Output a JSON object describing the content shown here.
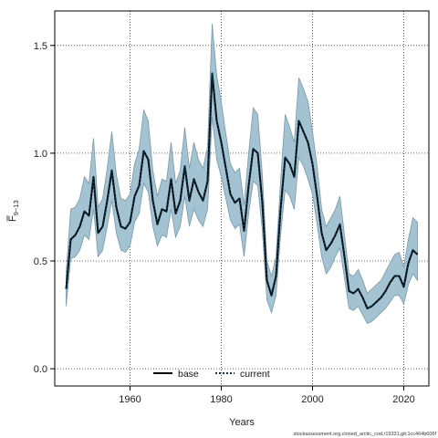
{
  "chart_data": {
    "type": "line",
    "title": "",
    "xlabel": "Years",
    "ylabel_main": "F",
    "ylabel_sub": "9−13",
    "xlim": [
      1943.5,
      2025.5
    ],
    "ylim": [
      -0.08,
      1.66
    ],
    "x_ticks": [
      1960,
      1980,
      2000,
      2020
    ],
    "x_tick_labels": [
      "1960",
      "1980",
      "2000",
      "2020"
    ],
    "y_ticks": [
      0.0,
      0.5,
      1.0,
      1.5
    ],
    "y_tick_labels": [
      "0.0",
      "0.5",
      "1.0",
      "1.5"
    ],
    "grid": true,
    "legend_placement": "bottom-center",
    "colors": {
      "band_fill": "#a3c3d3",
      "band_stroke": "#7a98a8",
      "base_line": "#000000",
      "current_line": "#0a3346"
    },
    "x": [
      1946,
      1947,
      1948,
      1949,
      1950,
      1951,
      1952,
      1953,
      1954,
      1955,
      1956,
      1957,
      1958,
      1959,
      1960,
      1961,
      1962,
      1963,
      1964,
      1965,
      1966,
      1967,
      1968,
      1969,
      1970,
      1971,
      1972,
      1973,
      1974,
      1975,
      1976,
      1977,
      1978,
      1979,
      1980,
      1981,
      1982,
      1983,
      1984,
      1985,
      1986,
      1987,
      1988,
      1989,
      1990,
      1991,
      1992,
      1993,
      1994,
      1995,
      1996,
      1997,
      1998,
      1999,
      2000,
      2001,
      2002,
      2003,
      2004,
      2005,
      2006,
      2007,
      2008,
      2009,
      2010,
      2011,
      2012,
      2013,
      2014,
      2015,
      2016,
      2017,
      2018,
      2019,
      2020,
      2021,
      2022,
      2023
    ],
    "series": [
      {
        "name": "base",
        "style": "solid",
        "values": [
          0.37,
          0.6,
          0.62,
          0.66,
          0.73,
          0.71,
          0.89,
          0.63,
          0.66,
          0.78,
          0.92,
          0.75,
          0.66,
          0.65,
          0.68,
          0.8,
          0.85,
          1.01,
          0.97,
          0.78,
          0.67,
          0.74,
          0.73,
          0.88,
          0.72,
          0.78,
          0.94,
          0.78,
          0.88,
          0.82,
          0.78,
          0.87,
          1.37,
          1.15,
          1.05,
          0.93,
          0.81,
          0.77,
          0.79,
          0.64,
          0.85,
          1.02,
          1.0,
          0.77,
          0.41,
          0.34,
          0.43,
          0.74,
          0.98,
          0.95,
          0.89,
          1.15,
          1.1,
          1.05,
          0.95,
          0.8,
          0.63,
          0.55,
          0.58,
          0.62,
          0.67,
          0.52,
          0.36,
          0.35,
          0.37,
          0.33,
          0.28,
          0.29,
          0.31,
          0.33,
          0.36,
          0.4,
          0.43,
          0.43,
          0.38,
          0.49,
          0.55,
          0.53
        ]
      },
      {
        "name": "current",
        "style": "dotted",
        "values": [
          0.37,
          0.6,
          0.62,
          0.66,
          0.73,
          0.71,
          0.89,
          0.63,
          0.66,
          0.78,
          0.92,
          0.75,
          0.66,
          0.65,
          0.68,
          0.8,
          0.85,
          1.01,
          0.97,
          0.78,
          0.67,
          0.74,
          0.73,
          0.88,
          0.72,
          0.78,
          0.94,
          0.78,
          0.88,
          0.82,
          0.78,
          0.87,
          1.37,
          1.15,
          1.05,
          0.93,
          0.81,
          0.77,
          0.79,
          0.64,
          0.85,
          1.02,
          1.0,
          0.77,
          0.41,
          0.34,
          0.43,
          0.74,
          0.98,
          0.95,
          0.89,
          1.15,
          1.1,
          1.05,
          0.95,
          0.8,
          0.63,
          0.55,
          0.58,
          0.62,
          0.67,
          0.52,
          0.36,
          0.35,
          0.37,
          0.33,
          0.28,
          0.29,
          0.31,
          0.33,
          0.36,
          0.4,
          0.43,
          0.43,
          0.38,
          0.49,
          0.55,
          0.53
        ]
      }
    ],
    "band_lower": [
      0.29,
      0.51,
      0.52,
      0.55,
      0.62,
      0.6,
      0.74,
      0.52,
      0.55,
      0.66,
      0.78,
      0.63,
      0.55,
      0.54,
      0.57,
      0.68,
      0.72,
      0.86,
      0.82,
      0.66,
      0.57,
      0.62,
      0.61,
      0.74,
      0.61,
      0.66,
      0.8,
      0.66,
      0.74,
      0.69,
      0.66,
      0.74,
      1.17,
      0.97,
      0.89,
      0.79,
      0.69,
      0.65,
      0.67,
      0.52,
      0.72,
      0.87,
      0.85,
      0.64,
      0.32,
      0.26,
      0.34,
      0.62,
      0.83,
      0.8,
      0.74,
      0.98,
      0.94,
      0.88,
      0.81,
      0.67,
      0.52,
      0.44,
      0.47,
      0.52,
      0.56,
      0.42,
      0.28,
      0.27,
      0.29,
      0.25,
      0.21,
      0.22,
      0.24,
      0.26,
      0.28,
      0.31,
      0.34,
      0.34,
      0.3,
      0.39,
      0.44,
      0.41
    ],
    "band_upper": [
      0.45,
      0.74,
      0.75,
      0.79,
      0.89,
      0.86,
      1.07,
      0.75,
      0.79,
      0.93,
      1.1,
      0.9,
      0.79,
      0.78,
      0.81,
      0.95,
      1.02,
      1.2,
      1.15,
      0.92,
      0.8,
      0.88,
      0.87,
      1.05,
      0.86,
      0.92,
      1.12,
      0.93,
      1.05,
      0.97,
      0.93,
      1.03,
      1.6,
      1.36,
      1.24,
      1.09,
      0.95,
      0.91,
      0.93,
      0.76,
      1.0,
      1.21,
      1.18,
      0.9,
      0.5,
      0.43,
      0.52,
      0.87,
      1.18,
      1.12,
      1.05,
      1.35,
      1.3,
      1.24,
      1.1,
      0.94,
      0.74,
      0.66,
      0.7,
      0.74,
      0.8,
      0.62,
      0.44,
      0.43,
      0.46,
      0.41,
      0.35,
      0.37,
      0.39,
      0.41,
      0.45,
      0.49,
      0.53,
      0.54,
      0.47,
      0.6,
      0.7,
      0.68
    ]
  },
  "legend": {
    "items": [
      {
        "label": "base"
      },
      {
        "label": "current"
      }
    ]
  },
  "footnote": "stockassessment.org,cloned_arctic_cod,r19331,git:1cc464b606f"
}
